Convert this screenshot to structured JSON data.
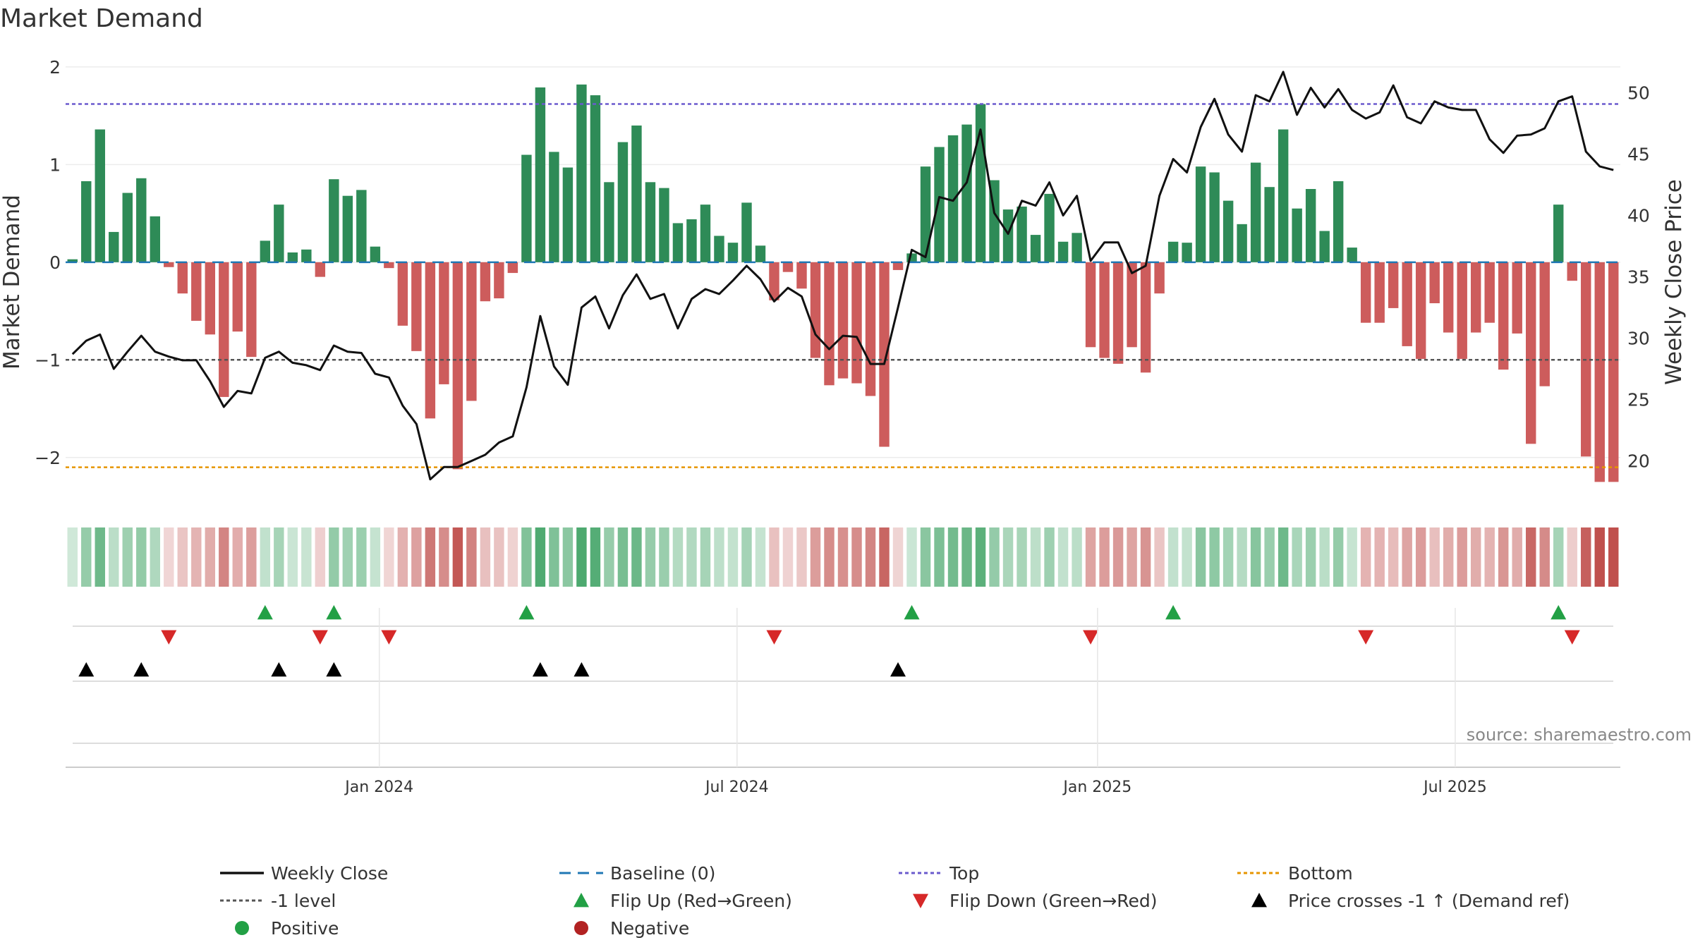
{
  "chart_data": {
    "type": "bar",
    "title": "Market Demand",
    "ylabel_left": "Market Demand",
    "ylabel_right": "Weekly Close Price",
    "ylim_left": [
      -2.5,
      2.05
    ],
    "ylim_right": [
      16.3,
      52.5
    ],
    "yticks_left": [
      {
        "value": 2,
        "label": "2"
      },
      {
        "value": 1,
        "label": "1"
      },
      {
        "value": 0,
        "label": "0"
      },
      {
        "value": -1,
        "label": "−1"
      },
      {
        "value": -2,
        "label": "−2"
      }
    ],
    "yticks_right": [
      {
        "value": 50,
        "label": "50"
      },
      {
        "value": 45,
        "label": "45"
      },
      {
        "value": 40,
        "label": "40"
      },
      {
        "value": 35,
        "label": "35"
      },
      {
        "value": 30,
        "label": "30"
      },
      {
        "value": 25,
        "label": "25"
      },
      {
        "value": 20,
        "label": "20"
      }
    ],
    "xticks": [
      {
        "index": 22.3,
        "label": "Jan 2024"
      },
      {
        "index": 48.3,
        "label": "Jul 2024"
      },
      {
        "index": 74.5,
        "label": "Jan 2025"
      },
      {
        "index": 100.5,
        "label": "Jul 2025"
      }
    ],
    "reference_lines": {
      "baseline": 0,
      "top": 1.62,
      "bottom": -2.1,
      "minus_one": -1
    },
    "demand": [
      0.03,
      0.83,
      1.36,
      0.31,
      0.71,
      0.86,
      0.47,
      -0.05,
      -0.32,
      -0.6,
      -0.74,
      -1.38,
      -0.71,
      -0.97,
      0.22,
      0.59,
      0.1,
      0.13,
      -0.15,
      0.85,
      0.68,
      0.74,
      0.16,
      -0.06,
      -0.65,
      -0.91,
      -1.6,
      -1.25,
      -2.12,
      -1.42,
      -0.4,
      -0.37,
      -0.11,
      1.1,
      1.79,
      1.13,
      0.97,
      1.82,
      1.71,
      0.82,
      1.23,
      1.4,
      0.82,
      0.76,
      0.4,
      0.44,
      0.59,
      0.27,
      0.2,
      0.61,
      0.17,
      -0.39,
      -0.1,
      -0.27,
      -0.98,
      -1.26,
      -1.19,
      -1.24,
      -1.37,
      -1.89,
      -0.08,
      0.09,
      0.98,
      1.18,
      1.3,
      1.41,
      1.62,
      0.84,
      0.54,
      0.57,
      0.28,
      0.7,
      0.21,
      0.3,
      -0.87,
      -0.98,
      -1.04,
      -0.87,
      -1.13,
      -0.32,
      0.21,
      0.2,
      0.98,
      0.92,
      0.63,
      0.39,
      1.02,
      0.77,
      1.36,
      0.55,
      0.75,
      0.32,
      0.83,
      0.15,
      -0.62,
      -0.62,
      -0.47,
      -0.86,
      -0.99,
      -0.42,
      -0.72,
      -0.99,
      -0.72,
      -0.62,
      -1.1,
      -0.73,
      -1.86,
      -1.27,
      0.59,
      -0.19,
      -1.99,
      -2.25,
      -2.25
    ],
    "weekly_close": [
      28.7,
      29.8,
      30.3,
      27.5,
      28.9,
      30.2,
      28.9,
      28.5,
      28.2,
      28.2,
      26.5,
      24.4,
      25.7,
      25.5,
      28.4,
      28.9,
      28.0,
      27.8,
      27.4,
      29.4,
      28.9,
      28.8,
      27.1,
      26.8,
      24.5,
      23.0,
      18.5,
      19.5,
      19.5,
      20.0,
      20.5,
      21.5,
      22.0,
      26.0,
      31.8,
      27.7,
      26.2,
      32.5,
      33.4,
      30.8,
      33.5,
      35.2,
      33.2,
      33.6,
      30.8,
      33.2,
      34.0,
      33.6,
      34.7,
      35.9,
      34.8,
      33.0,
      34.1,
      33.4,
      30.3,
      29.1,
      30.2,
      30.1,
      27.9,
      27.9,
      32.5,
      37.2,
      36.6,
      41.5,
      41.2,
      42.7,
      47.0,
      40.2,
      38.5,
      41.2,
      40.8,
      42.7,
      40.0,
      41.6,
      36.3,
      37.8,
      37.8,
      35.3,
      35.9,
      41.6,
      44.6,
      43.5,
      47.2,
      49.5,
      46.6,
      45.2,
      49.8,
      49.3,
      51.7,
      48.2,
      50.4,
      48.8,
      50.3,
      48.6,
      47.9,
      48.4,
      50.6,
      48.0,
      47.5,
      49.3,
      48.8,
      48.6,
      48.6,
      46.2,
      45.1,
      46.5,
      46.6,
      47.1,
      49.3,
      49.7,
      45.2,
      44.0,
      43.7
    ],
    "flip_up_indices": [
      14,
      19,
      33,
      61,
      80,
      108
    ],
    "flip_down_indices": [
      7,
      18,
      23,
      51,
      74,
      94,
      109
    ],
    "price_cross_indices": [
      1,
      5,
      15,
      19,
      34,
      37,
      60
    ],
    "colors": {
      "positive": "#2e8b57",
      "negative": "#cd5c5c",
      "weekly_close": "#111111",
      "baseline": "#1f77b4",
      "top": "#6a5acd",
      "bottom": "#e69500",
      "minus_one": "#555555",
      "flip_up": "#22a045",
      "flip_down": "#d62828",
      "cross": "#000000"
    },
    "legend": [
      {
        "label": "Weekly Close",
        "kind": "line",
        "color": "#111111",
        "dash": ""
      },
      {
        "label": "Baseline (0)",
        "kind": "line",
        "color": "#1f77b4",
        "dash": "16 10"
      },
      {
        "label": "Top",
        "kind": "line",
        "color": "#6a5acd",
        "dash": "5 4"
      },
      {
        "label": "Bottom",
        "kind": "line",
        "color": "#e69500",
        "dash": "5 4"
      },
      {
        "label": "-1 level",
        "kind": "line",
        "color": "#555555",
        "dash": "5 4"
      },
      {
        "label": "Flip Up (Red→Green)",
        "kind": "tri-up",
        "color": "#22a045"
      },
      {
        "label": "Flip Down (Green→Red)",
        "kind": "tri-down",
        "color": "#d62828"
      },
      {
        "label": "Price crosses -1 ↑ (Demand ref)",
        "kind": "tri-up",
        "color": "#000000"
      },
      {
        "label": "Positive",
        "kind": "dot",
        "color": "#22a045"
      },
      {
        "label": "Negative",
        "kind": "dot",
        "color": "#b22222"
      }
    ],
    "source": "source: sharemaestro.com"
  }
}
